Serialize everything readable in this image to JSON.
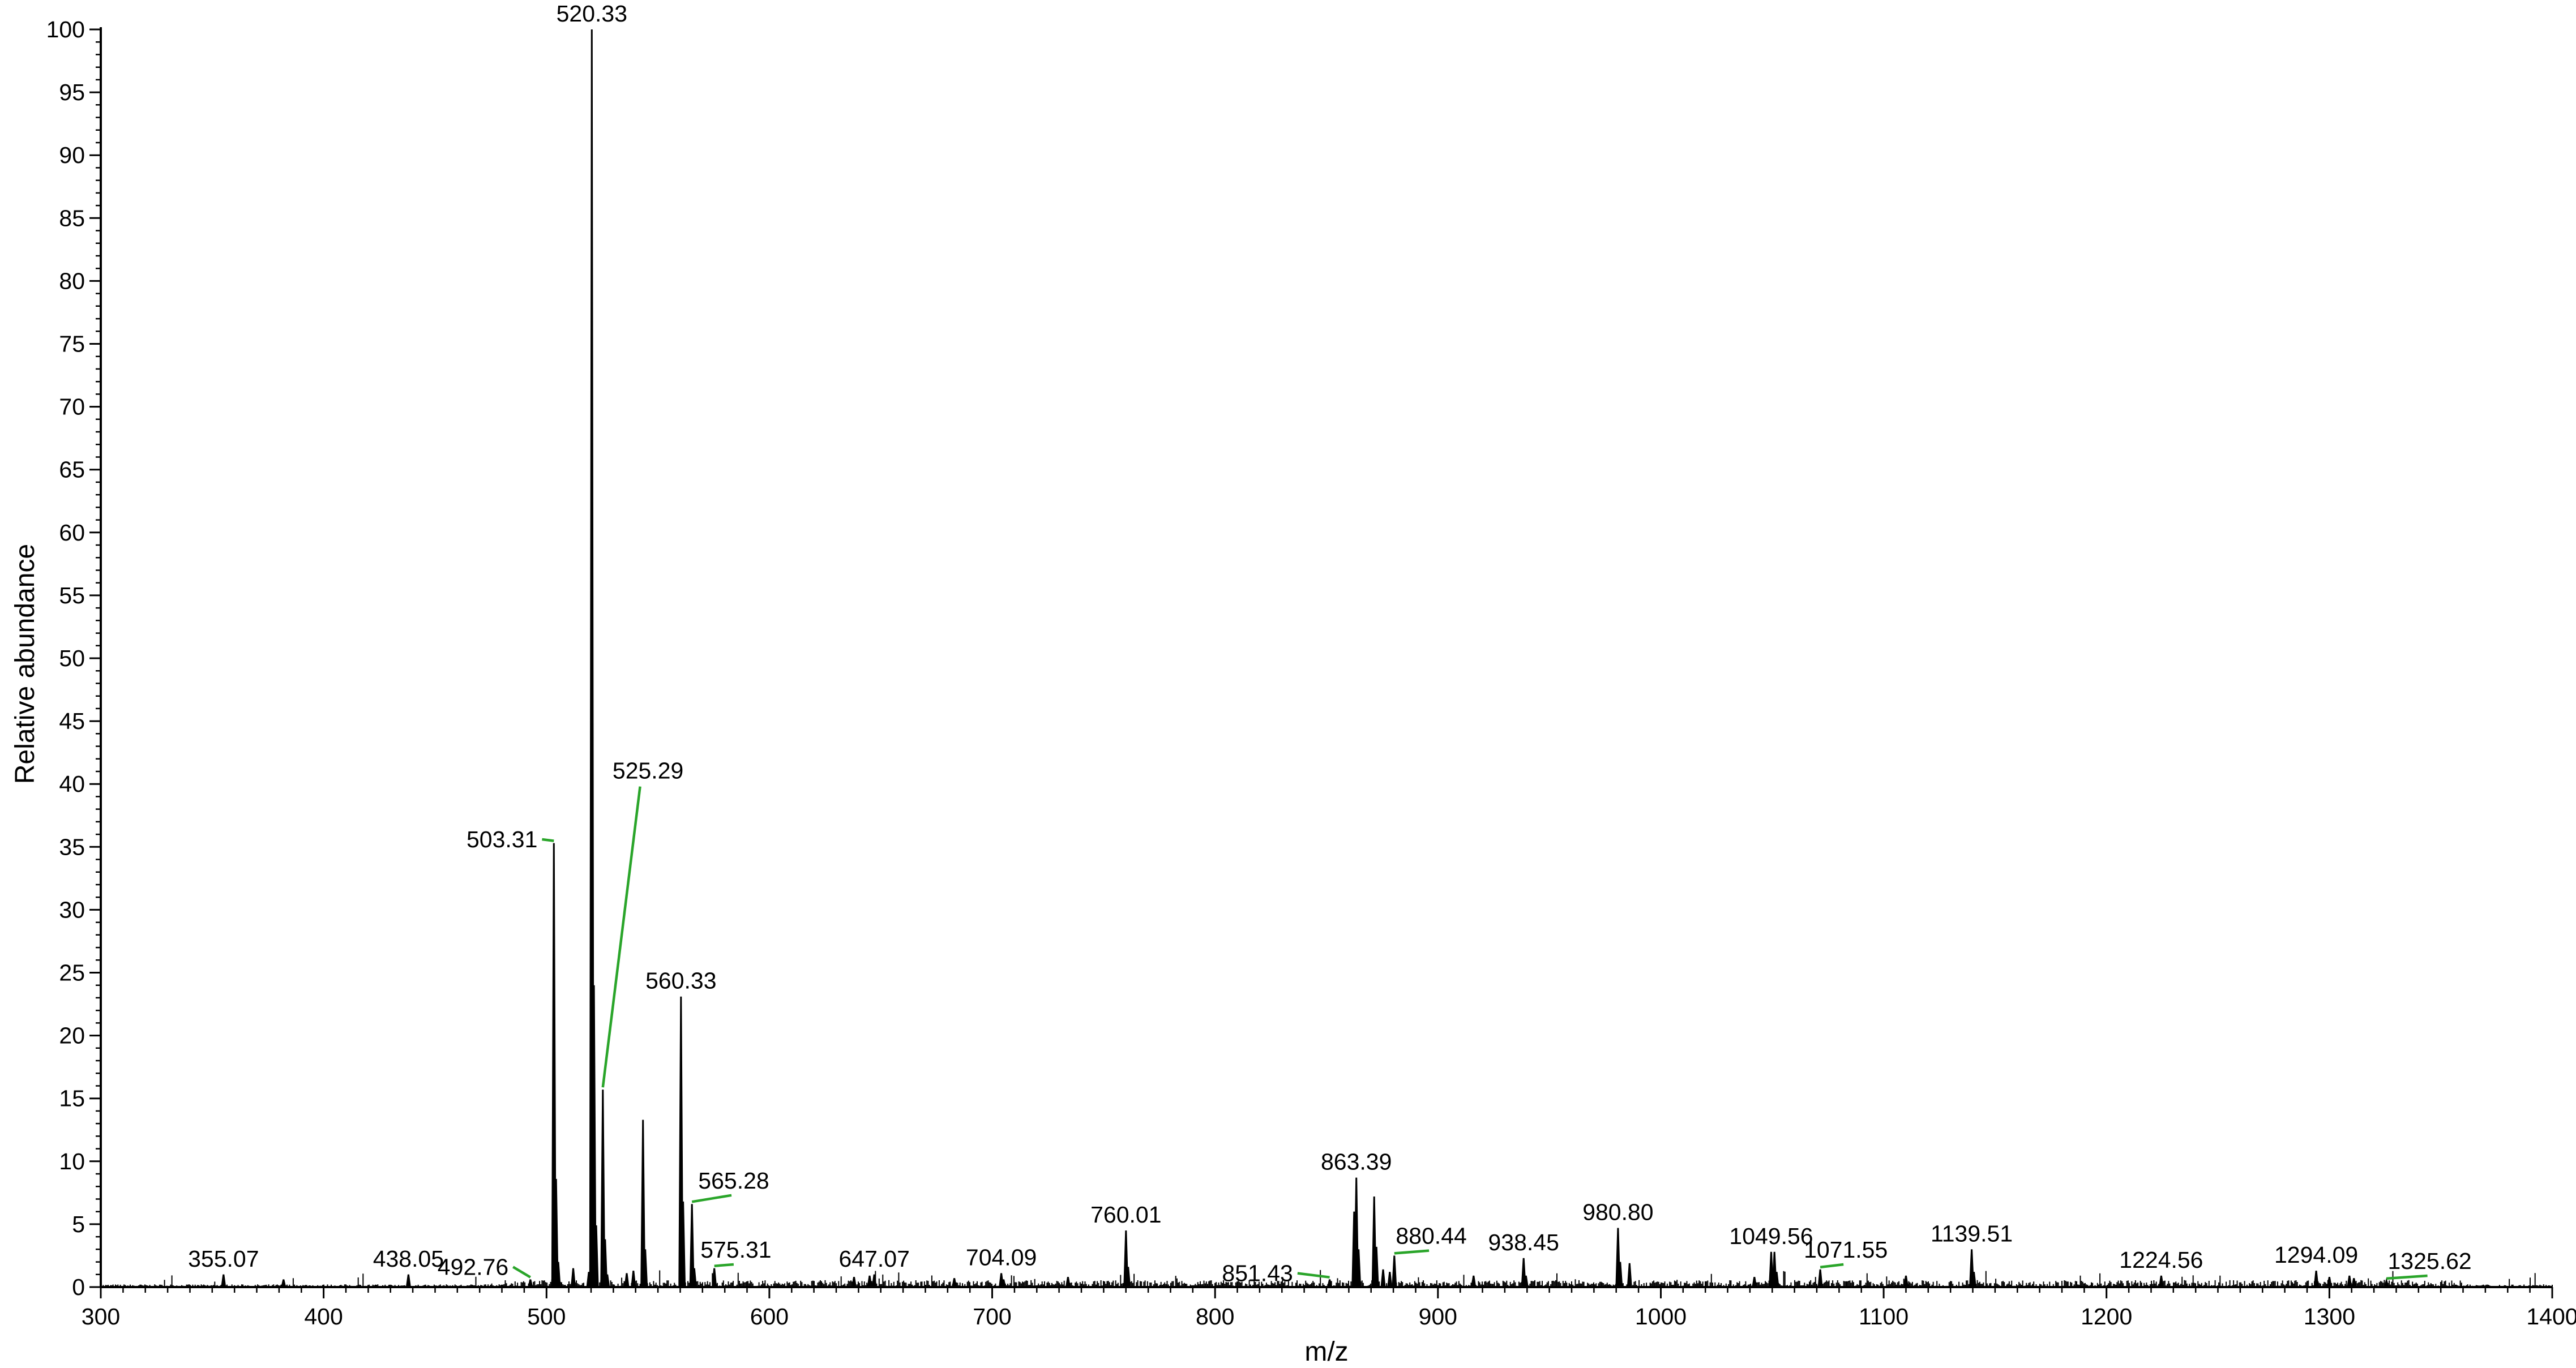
{
  "chart_data": {
    "type": "line",
    "title": "",
    "xlabel": "m/z",
    "ylabel": "Relative abundance",
    "xlim": [
      300,
      1400
    ],
    "ylim": [
      0,
      100
    ],
    "x_ticks": [
      300,
      400,
      500,
      600,
      700,
      800,
      900,
      1000,
      1100,
      1200,
      1300,
      1400
    ],
    "y_ticks": [
      0,
      5,
      10,
      15,
      20,
      25,
      30,
      35,
      40,
      45,
      50,
      55,
      60,
      65,
      70,
      75,
      80,
      85,
      90,
      95,
      100
    ],
    "grid": false,
    "legend": "none",
    "colors": {
      "spectrum": "#000000",
      "leader": "#2aa52a",
      "axis": "#000000"
    },
    "labeled_peaks": [
      {
        "label": "355.07",
        "mz": 355.07,
        "intensity": 1.0
      },
      {
        "label": "438.05",
        "mz": 438.05,
        "intensity": 1.0
      },
      {
        "label": "492.76",
        "mz": 492.76,
        "intensity": 0.6,
        "leader_to": [
          485,
          1.6
        ]
      },
      {
        "label": "503.31",
        "mz": 503.31,
        "intensity": 35.3,
        "leader_to": [
          498,
          35.6
        ]
      },
      {
        "label": "520.33",
        "mz": 520.33,
        "intensity": 100
      },
      {
        "label": "525.29",
        "mz": 525.29,
        "intensity": 15.7,
        "leader_to": [
          542,
          39.8
        ]
      },
      {
        "label": "560.33",
        "mz": 560.33,
        "intensity": 23.1
      },
      {
        "label": "565.28",
        "mz": 565.28,
        "intensity": 6.6,
        "leader_to": [
          583,
          7.3
        ]
      },
      {
        "label": "575.31",
        "mz": 575.31,
        "intensity": 1.5,
        "leader_to": [
          584,
          1.8
        ]
      },
      {
        "label": "647.07",
        "mz": 647.07,
        "intensity": 1.0
      },
      {
        "label": "704.09",
        "mz": 704.09,
        "intensity": 1.1
      },
      {
        "label": "760.01",
        "mz": 760.01,
        "intensity": 4.5
      },
      {
        "label": "851.43",
        "mz": 851.43,
        "intensity": 0.6,
        "leader_to": [
          837,
          1.1
        ]
      },
      {
        "label": "863.39",
        "mz": 863.39,
        "intensity": 8.7
      },
      {
        "label": "880.44",
        "mz": 880.44,
        "intensity": 2.5,
        "leader_to": [
          896,
          2.9
        ]
      },
      {
        "label": "938.45",
        "mz": 938.45,
        "intensity": 2.3
      },
      {
        "label": "980.80",
        "mz": 980.8,
        "intensity": 4.7
      },
      {
        "label": "1049.56",
        "mz": 1049.56,
        "intensity": 2.8
      },
      {
        "label": "1071.55",
        "mz": 1071.55,
        "intensity": 1.4,
        "leader_to": [
          1082,
          1.8
        ]
      },
      {
        "label": "1139.51",
        "mz": 1139.51,
        "intensity": 3.0
      },
      {
        "label": "1224.56",
        "mz": 1224.56,
        "intensity": 0.9
      },
      {
        "label": "1294.09",
        "mz": 1294.09,
        "intensity": 1.3
      },
      {
        "label": "1325.62",
        "mz": 1325.62,
        "intensity": 0.5,
        "leader_to": [
          1344,
          0.9
        ]
      }
    ],
    "unlabeled_peaks": [
      {
        "mz": 504.3,
        "intensity": 8.6
      },
      {
        "mz": 505.3,
        "intensity": 2.0
      },
      {
        "mz": 512.0,
        "intensity": 1.5
      },
      {
        "mz": 519.0,
        "intensity": 1.2
      },
      {
        "mz": 521.3,
        "intensity": 24.0
      },
      {
        "mz": 522.3,
        "intensity": 4.9
      },
      {
        "mz": 526.3,
        "intensity": 3.8
      },
      {
        "mz": 527.3,
        "intensity": 1.0
      },
      {
        "mz": 536.0,
        "intensity": 1.1
      },
      {
        "mz": 539.0,
        "intensity": 1.3
      },
      {
        "mz": 543.3,
        "intensity": 13.3
      },
      {
        "mz": 544.3,
        "intensity": 3.0
      },
      {
        "mz": 561.3,
        "intensity": 6.8
      },
      {
        "mz": 566.3,
        "intensity": 1.5
      },
      {
        "mz": 382.0,
        "intensity": 0.6
      },
      {
        "mz": 638.0,
        "intensity": 0.8
      },
      {
        "mz": 645.0,
        "intensity": 0.9
      },
      {
        "mz": 683.0,
        "intensity": 0.7
      },
      {
        "mz": 705.1,
        "intensity": 0.6
      },
      {
        "mz": 734.0,
        "intensity": 0.8
      },
      {
        "mz": 761.0,
        "intensity": 1.6
      },
      {
        "mz": 862.4,
        "intensity": 6.0
      },
      {
        "mz": 864.4,
        "intensity": 3.0
      },
      {
        "mz": 871.4,
        "intensity": 7.2
      },
      {
        "mz": 872.4,
        "intensity": 3.2
      },
      {
        "mz": 875.4,
        "intensity": 1.4
      },
      {
        "mz": 878.4,
        "intensity": 1.2
      },
      {
        "mz": 916.0,
        "intensity": 0.9
      },
      {
        "mz": 939.5,
        "intensity": 0.9
      },
      {
        "mz": 981.8,
        "intensity": 2.0
      },
      {
        "mz": 986.0,
        "intensity": 1.9
      },
      {
        "mz": 1042.0,
        "intensity": 0.8
      },
      {
        "mz": 1050.6,
        "intensity": 1.0
      },
      {
        "mz": 1051.0,
        "intensity": 2.8
      },
      {
        "mz": 1052.0,
        "intensity": 1.2
      },
      {
        "mz": 1110.0,
        "intensity": 0.9
      },
      {
        "mz": 1140.5,
        "intensity": 1.2
      },
      {
        "mz": 1300.0,
        "intensity": 0.8
      },
      {
        "mz": 1309.0,
        "intensity": 0.9
      },
      {
        "mz": 1311.0,
        "intensity": 0.7
      }
    ]
  }
}
